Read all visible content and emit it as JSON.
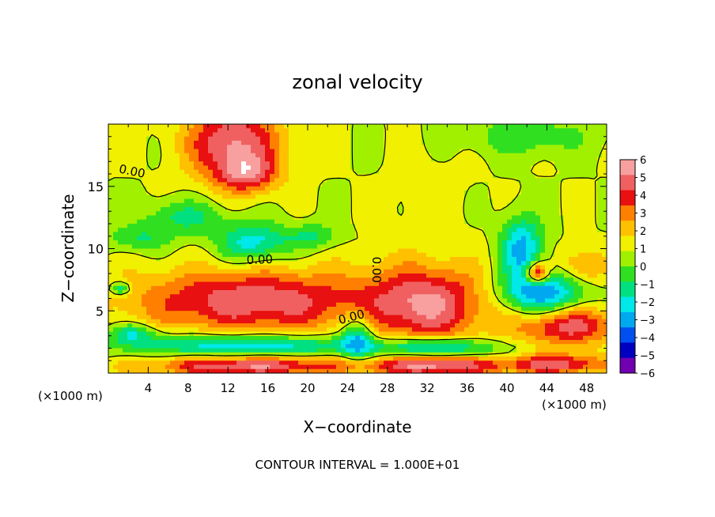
{
  "chart_data": {
    "type": "heatmap",
    "title": "zonal velocity",
    "xlabel": "X−coordinate",
    "ylabel": "Z−coordinate",
    "x_unit_left": "(×1000 m)",
    "x_unit_right": "(×1000 m)",
    "footer": "CONTOUR INTERVAL = 1.000E+01",
    "xlim": [
      0,
      50
    ],
    "ylim": [
      0,
      20
    ],
    "x_ticks": [
      4,
      8,
      12,
      16,
      20,
      24,
      28,
      32,
      36,
      40,
      44,
      48
    ],
    "y_ticks": [
      5,
      10,
      15
    ],
    "colorbar": {
      "min": -6,
      "max": 6,
      "labels": [
        "6",
        "5",
        "4",
        "3",
        "2",
        "1",
        "0",
        "−1",
        "−2",
        "−3",
        "−4",
        "−5",
        "−6"
      ],
      "colors": [
        "#f8a0a0",
        "#f06060",
        "#e81010",
        "#ff8000",
        "#ffc000",
        "#f0f000",
        "#a0f000",
        "#30e020",
        "#00e080",
        "#00e8e8",
        "#00a8f0",
        "#0050f0",
        "#0000c0",
        "#7000b0"
      ]
    },
    "contour_labels": [
      {
        "text": "0.00",
        "x": 2.3,
        "y": 15.9,
        "angle": 12
      },
      {
        "text": "0.00",
        "x": 15.2,
        "y": 8.8,
        "angle": -2
      },
      {
        "text": "0.00",
        "x": 26.5,
        "y": 8.3,
        "angle": 90
      },
      {
        "text": "0.00",
        "x": 24.5,
        "y": 4.2,
        "angle": -15
      }
    ],
    "features": [
      {
        "cx": 12.5,
        "cy": 18.5,
        "rx": 4.5,
        "ry": 3.0,
        "v": 5.2
      },
      {
        "cx": 14.0,
        "cy": 16.0,
        "rx": 3.0,
        "ry": 1.5,
        "v": 3.5
      },
      {
        "cx": 7.5,
        "cy": 12.5,
        "rx": 4.0,
        "ry": 1.4,
        "v": -2.3
      },
      {
        "cx": 14.5,
        "cy": 10.5,
        "rx": 3.5,
        "ry": 1.6,
        "v": -3.6
      },
      {
        "cx": 3.0,
        "cy": 10.8,
        "rx": 3.0,
        "ry": 1.0,
        "v": -2.0
      },
      {
        "cx": 20.5,
        "cy": 11.0,
        "rx": 2.5,
        "ry": 1.0,
        "v": -2.2
      },
      {
        "cx": 32.0,
        "cy": 14.5,
        "rx": 4.0,
        "ry": 3.5,
        "v": 0.6
      },
      {
        "cx": 42.0,
        "cy": 19.0,
        "rx": 6.0,
        "ry": 1.5,
        "v": -1.8
      },
      {
        "cx": 41.5,
        "cy": 10.0,
        "rx": 2.0,
        "ry": 2.5,
        "v": -4.5
      },
      {
        "cx": 43.5,
        "cy": 6.5,
        "rx": 4.0,
        "ry": 1.8,
        "v": -5.3
      },
      {
        "cx": 47.5,
        "cy": 8.5,
        "rx": 2.5,
        "ry": 1.5,
        "v": 2.5
      },
      {
        "cx": 14.5,
        "cy": 5.8,
        "rx": 12.0,
        "ry": 2.6,
        "v": 4.8
      },
      {
        "cx": 32.0,
        "cy": 5.5,
        "rx": 6.0,
        "ry": 3.2,
        "v": 4.8
      },
      {
        "cx": 46.0,
        "cy": 3.8,
        "rx": 5.0,
        "ry": 1.6,
        "v": 4.6
      },
      {
        "cx": 14.0,
        "cy": 2.2,
        "rx": 12.0,
        "ry": 0.9,
        "v": -4.3
      },
      {
        "cx": 33.0,
        "cy": 2.0,
        "rx": 6.0,
        "ry": 0.8,
        "v": -4.3
      },
      {
        "cx": 25.0,
        "cy": 3.0,
        "rx": 1.5,
        "ry": 1.8,
        "v": -4.0
      },
      {
        "cx": 2.5,
        "cy": 3.2,
        "rx": 2.5,
        "ry": 0.8,
        "v": -3.0
      },
      {
        "cx": 14.0,
        "cy": 0.6,
        "rx": 10.0,
        "ry": 0.8,
        "v": 5.0
      },
      {
        "cx": 33.0,
        "cy": 0.6,
        "rx": 6.5,
        "ry": 0.8,
        "v": 5.0
      },
      {
        "cx": 45.0,
        "cy": 0.7,
        "rx": 5.0,
        "ry": 0.8,
        "v": 4.5
      },
      {
        "cx": 1.2,
        "cy": 6.8,
        "rx": 1.0,
        "ry": 0.5,
        "v": -3.5
      },
      {
        "cx": 43.0,
        "cy": 8.0,
        "rx": 1.2,
        "ry": 0.9,
        "v": 6.5
      }
    ]
  }
}
